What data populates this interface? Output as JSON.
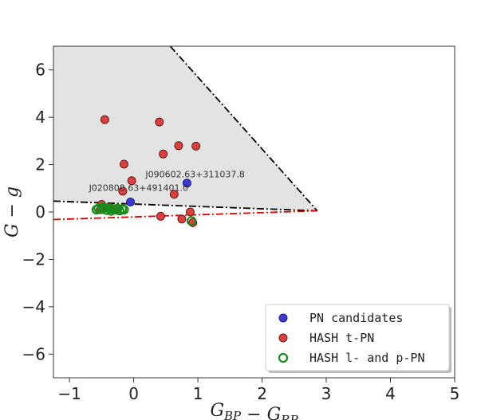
{
  "chart_data": {
    "type": "scatter",
    "xlabel": "G_{BP} − G_{RP}",
    "ylabel": "G − g",
    "xlim": [
      -1.25,
      5.0
    ],
    "ylim": [
      -7.0,
      7.0
    ],
    "xticks": [
      -1,
      0,
      1,
      2,
      3,
      4,
      5
    ],
    "yticks": [
      -6,
      -4,
      -2,
      0,
      2,
      4,
      6
    ],
    "xtick_labels": [
      "−1",
      "0",
      "1",
      "2",
      "3",
      "4",
      "5"
    ],
    "ytick_labels": [
      "−6",
      "−4",
      "−2",
      "0",
      "2",
      "4",
      "6"
    ],
    "grid": false,
    "legend_position": "lower-right",
    "shaded_region": {
      "color": "#e3e3e3",
      "polygon": [
        [
          -1.25,
          7.0
        ],
        [
          0.57,
          7.0
        ],
        [
          2.86,
          0.05
        ],
        [
          -1.25,
          0.46
        ]
      ]
    },
    "lines": [
      {
        "style": "dash-dot",
        "color": "#000000",
        "points": [
          [
            0.57,
            7.0
          ],
          [
            2.86,
            0.05
          ]
        ]
      },
      {
        "style": "dash-dot",
        "color": "#000000",
        "points": [
          [
            -1.25,
            0.46
          ],
          [
            2.86,
            0.05
          ]
        ]
      },
      {
        "style": "dash-dot",
        "color": "#dd0000",
        "points": [
          [
            -1.25,
            -0.32
          ],
          [
            2.86,
            0.05
          ]
        ]
      }
    ],
    "series": [
      {
        "name": "PN candidates",
        "marker": "filled",
        "fill": "#3b3bd0",
        "edge": "#1a1a80",
        "points": [
          [
            -0.05,
            0.42
          ],
          [
            0.83,
            1.22
          ]
        ]
      },
      {
        "name": "HASH t-PN",
        "marker": "filled",
        "fill": "#d94040",
        "edge": "#6a1a1a",
        "points": [
          [
            -0.45,
            3.9
          ],
          [
            0.4,
            3.8
          ],
          [
            0.46,
            2.45
          ],
          [
            0.7,
            2.8
          ],
          [
            0.97,
            2.78
          ],
          [
            -0.15,
            2.02
          ],
          [
            -0.03,
            1.32
          ],
          [
            -0.17,
            0.88
          ],
          [
            0.63,
            0.75
          ],
          [
            -0.5,
            0.32
          ],
          [
            -0.37,
            0.2
          ],
          [
            0.42,
            -0.18
          ],
          [
            0.75,
            -0.3
          ],
          [
            0.88,
            0.0
          ],
          [
            0.92,
            -0.45
          ],
          [
            -0.52,
            0.1
          ],
          [
            -0.28,
            0.08
          ]
        ]
      },
      {
        "name": "HASH l- and p-PN",
        "marker": "open",
        "fill": "none",
        "edge": "#1a8a1a",
        "points": [
          [
            -0.55,
            0.15
          ],
          [
            -0.5,
            0.12
          ],
          [
            -0.45,
            0.18
          ],
          [
            -0.42,
            0.08
          ],
          [
            -0.38,
            0.14
          ],
          [
            -0.35,
            0.05
          ],
          [
            -0.32,
            0.12
          ],
          [
            -0.28,
            0.1
          ],
          [
            -0.25,
            0.15
          ],
          [
            -0.22,
            0.06
          ],
          [
            -0.18,
            0.12
          ],
          [
            -0.15,
            0.1
          ],
          [
            -0.58,
            0.1
          ],
          [
            -0.48,
            0.2
          ],
          [
            0.9,
            -0.38
          ]
        ]
      }
    ],
    "annotations": [
      {
        "text": "J090602.63+311037.8",
        "x": 0.83,
        "y": 1.22
      },
      {
        "text": "J020808.63+491401.0",
        "x": -0.05,
        "y": 0.42
      }
    ],
    "legend": [
      "PN candidates",
      "HASH t-PN",
      "HASH l- and p-PN"
    ]
  }
}
